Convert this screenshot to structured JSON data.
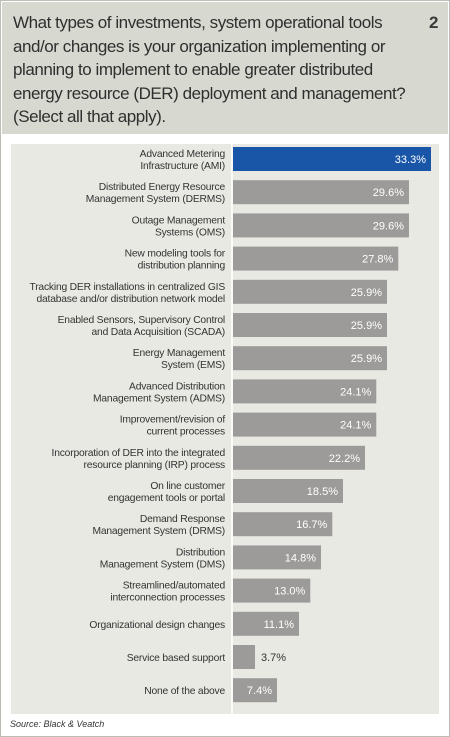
{
  "header": {
    "question": "What types of investments, system operational tools and/or changes is your organization implementing or planning to implement to enable greater distributed energy resource (DER) deployment and management? (Select all that apply).",
    "figure_number": "2"
  },
  "footer": {
    "source": "Source: Black & Veatch"
  },
  "colors": {
    "highlight_bar": "#1a56a8",
    "bar": "#9c9b9a",
    "plot_background": "#e8e9e3",
    "header_background": "#d7d8cf"
  },
  "chart_data": {
    "type": "bar",
    "orientation": "horizontal",
    "categories": [
      [
        "Advanced Metering",
        "Infrastructure (AMI)"
      ],
      [
        "Distributed Energy Resource",
        "Management System (DERMS)"
      ],
      [
        "Outage Management",
        "Systems (OMS)"
      ],
      [
        "New modeling tools for",
        "distribution planning"
      ],
      [
        "Tracking DER installations in centralized GIS",
        "database and/or distribution network model"
      ],
      [
        "Enabled Sensors, Supervisory Control",
        "and Data Acquisition (SCADA)"
      ],
      [
        "Energy Management",
        "System (EMS)"
      ],
      [
        "Advanced Distribution",
        "Management System (ADMS)"
      ],
      [
        "Improvement/revision of",
        "current processes"
      ],
      [
        "Incorporation of DER into the integrated",
        "resource planning (IRP) process"
      ],
      [
        "On line customer",
        "engagement tools or portal"
      ],
      [
        "Demand Response",
        "Management System (DRMS)"
      ],
      [
        "Distribution",
        "Management System (DMS)"
      ],
      [
        "Streamlined/automated",
        "interconnection processes"
      ],
      [
        "Organizational design changes"
      ],
      [
        "Service based support"
      ],
      [
        "None of the above"
      ]
    ],
    "values": [
      33.3,
      29.6,
      29.6,
      27.8,
      25.9,
      25.9,
      25.9,
      24.1,
      24.1,
      22.2,
      18.5,
      16.7,
      14.8,
      13.0,
      11.1,
      3.7,
      7.4
    ],
    "value_labels": [
      "33.3%",
      "29.6%",
      "29.6%",
      "27.8%",
      "25.9%",
      "25.9%",
      "25.9%",
      "24.1%",
      "24.1%",
      "22.2%",
      "18.5%",
      "16.7%",
      "14.8%",
      "13.0%",
      "11.1%",
      "3.7%",
      "7.4%"
    ],
    "highlighted_index": 0,
    "xlim": [
      0,
      33.3
    ],
    "unit": "%"
  }
}
